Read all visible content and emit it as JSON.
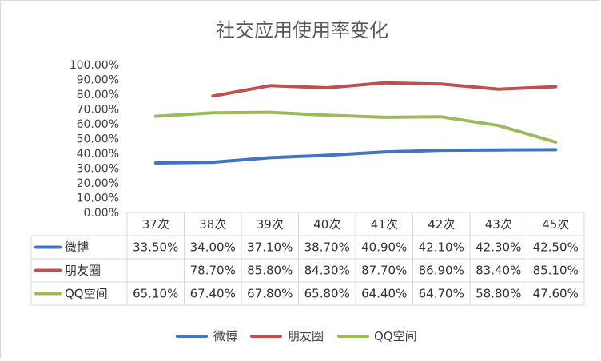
{
  "chart_data": {
    "type": "line",
    "title": "社交应用使用率变化",
    "categories": [
      "37次",
      "38次",
      "39次",
      "40次",
      "41次",
      "42次",
      "43次",
      "45次"
    ],
    "ylim": [
      0,
      100
    ],
    "y_ticks": [
      "0.00%",
      "10.00%",
      "20.00%",
      "30.00%",
      "40.00%",
      "50.00%",
      "60.00%",
      "70.00%",
      "80.00%",
      "90.00%",
      "100.00%"
    ],
    "grid": false,
    "legend_position": "bottom",
    "data_table": true,
    "series": [
      {
        "name": "微博",
        "color": "#4472C4",
        "values": [
          33.5,
          34.0,
          37.1,
          38.7,
          40.9,
          42.1,
          42.3,
          42.5
        ],
        "labels": [
          "33.50%",
          "34.00%",
          "37.10%",
          "38.70%",
          "40.90%",
          "42.10%",
          "42.30%",
          "42.50%"
        ]
      },
      {
        "name": "朋友圈",
        "color": "#C0504D",
        "values": [
          null,
          78.7,
          85.8,
          84.3,
          87.7,
          86.9,
          83.4,
          85.1
        ],
        "labels": [
          "",
          "78.70%",
          "85.80%",
          "84.30%",
          "87.70%",
          "86.90%",
          "83.40%",
          "85.10%"
        ]
      },
      {
        "name": "QQ空间",
        "color": "#9BBB59",
        "values": [
          65.1,
          67.4,
          67.8,
          65.8,
          64.4,
          64.7,
          58.8,
          47.6
        ],
        "labels": [
          "65.10%",
          "67.40%",
          "67.80%",
          "65.80%",
          "64.40%",
          "64.70%",
          "58.80%",
          "47.60%"
        ]
      }
    ]
  }
}
